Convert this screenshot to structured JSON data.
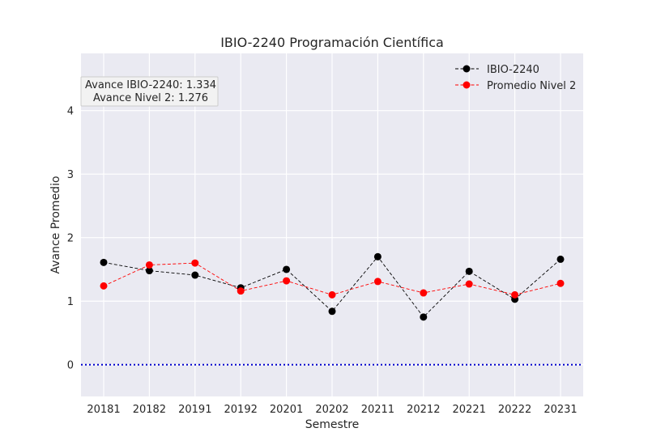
{
  "chart_data": {
    "type": "line",
    "title": "IBIO-2240 Programación Científica",
    "xlabel": "Semestre",
    "ylabel": "Avance Promedio",
    "categories": [
      "20181",
      "20182",
      "20191",
      "20192",
      "20201",
      "20202",
      "20211",
      "20212",
      "20221",
      "20222",
      "20231"
    ],
    "ylim": [
      -0.5,
      4.9
    ],
    "yticks": [
      0,
      1,
      2,
      3,
      4
    ],
    "grid": true,
    "legend_position": "top-right",
    "reference_line": {
      "y": 0,
      "color": "#0000cc",
      "style": "dotted"
    },
    "series": [
      {
        "name": "IBIO-2240",
        "color": "#000000",
        "values": [
          1.61,
          1.48,
          1.41,
          1.21,
          1.5,
          0.84,
          1.7,
          0.75,
          1.47,
          1.03,
          1.66
        ]
      },
      {
        "name": "Promedio Nivel 2",
        "color": "#ff0000",
        "values": [
          1.24,
          1.57,
          1.6,
          1.16,
          1.32,
          1.1,
          1.31,
          1.13,
          1.27,
          1.1,
          1.28
        ]
      }
    ],
    "annotation": {
      "line1": "Avance IBIO-2240: 1.334",
      "line2": "Avance Nivel 2: 1.276"
    }
  }
}
